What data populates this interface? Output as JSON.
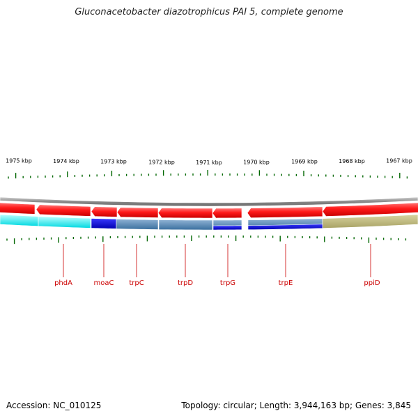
{
  "title": "Gluconacetobacter diazotrophicus PAI 5, complete genome",
  "footer": {
    "accession": "Accession: NC_010125",
    "topology": "Topology: circular; Length: 3,944,163 bp; Genes: 3,845"
  },
  "ruler": {
    "labels": [
      "1975 kbp",
      "1974 kbp",
      "1973 kbp",
      "1972 kbp",
      "1971 kbp",
      "1970 kbp",
      "1969 kbp",
      "1968 kbp",
      "1967 kbp"
    ]
  },
  "genes": [
    {
      "name": "phdA"
    },
    {
      "name": "moaC"
    },
    {
      "name": "trpC"
    },
    {
      "name": "trpD"
    },
    {
      "name": "trpG"
    },
    {
      "name": "trpE"
    },
    {
      "name": "ppiD"
    }
  ],
  "colors": {
    "gene_arrow": "#ff0000",
    "backbone": "#808080",
    "tick": "#006600",
    "label": "#cc0000"
  }
}
